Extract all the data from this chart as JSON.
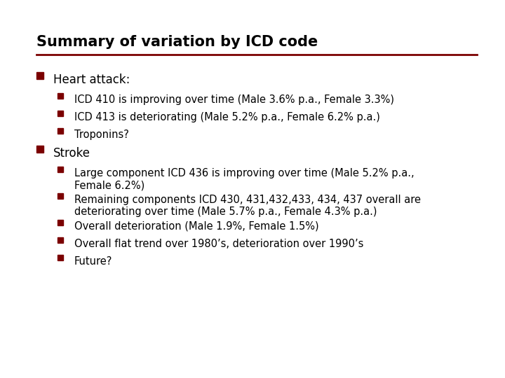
{
  "title": "Summary of variation by ICD code",
  "title_fontsize": 15,
  "title_color": "#000000",
  "title_bold": true,
  "line_color": "#7B0000",
  "background_color": "#FFFFFF",
  "bullet_color": "#7B0000",
  "text_color": "#000000",
  "items": [
    {
      "level": 0,
      "text": "Heart attack:",
      "bold": false,
      "fontsize": 12
    },
    {
      "level": 1,
      "text": "ICD 410 is improving over time (Male 3.6% p.a., Female 3.3%)",
      "bold": false,
      "fontsize": 10.5,
      "lines": 1
    },
    {
      "level": 1,
      "text": "ICD 413 is deteriorating (Male 5.2% p.a., Female 6.2% p.a.)",
      "bold": false,
      "fontsize": 10.5,
      "lines": 1
    },
    {
      "level": 1,
      "text": "Troponins?",
      "bold": false,
      "fontsize": 10.5,
      "lines": 1
    },
    {
      "level": 0,
      "text": "Stroke",
      "bold": false,
      "fontsize": 12,
      "lines": 1
    },
    {
      "level": 1,
      "text": "Large component ICD 436 is improving over time (Male 5.2% p.a.,\nFemale 6.2%)",
      "bold": false,
      "fontsize": 10.5,
      "lines": 2
    },
    {
      "level": 1,
      "text": "Remaining components ICD 430, 431,432,433, 434, 437 overall are\ndeteriorating over time (Male 5.7% p.a., Female 4.3% p.a.)",
      "bold": false,
      "fontsize": 10.5,
      "lines": 2
    },
    {
      "level": 1,
      "text": "Overall deterioration (Male 1.9%, Female 1.5%)",
      "bold": false,
      "fontsize": 10.5,
      "lines": 1
    },
    {
      "level": 1,
      "text": "Overall flat trend over 1980’s, deterioration over 1990’s",
      "bold": false,
      "fontsize": 10.5,
      "lines": 1
    },
    {
      "level": 1,
      "text": "Future?",
      "bold": false,
      "fontsize": 10.5,
      "lines": 1
    }
  ]
}
